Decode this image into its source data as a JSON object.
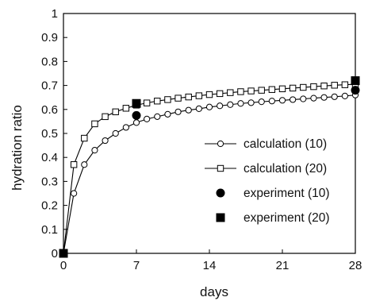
{
  "chart_data": {
    "type": "line",
    "title": "",
    "xlabel": "days",
    "ylabel": "hydration ratio",
    "xlim": [
      0,
      28
    ],
    "ylim": [
      0,
      1
    ],
    "xticks": [
      "0",
      "7",
      "14",
      "21",
      "28"
    ],
    "yticks": [
      "0",
      "0.1",
      "0.2",
      "0.3",
      "0.4",
      "0.5",
      "0.6",
      "0.7",
      "0.8",
      "0.9",
      "1"
    ],
    "grid": false,
    "legend_position": "bottom-right",
    "series": [
      {
        "name": "calculation (10)",
        "style": "line-open-circle",
        "x": [
          0,
          1,
          2,
          3,
          4,
          5,
          6,
          7,
          8,
          9,
          10,
          11,
          12,
          13,
          14,
          15,
          16,
          17,
          18,
          19,
          20,
          21,
          22,
          23,
          24,
          25,
          26,
          27,
          28
        ],
        "y": [
          0,
          0.25,
          0.37,
          0.43,
          0.47,
          0.5,
          0.525,
          0.545,
          0.56,
          0.57,
          0.58,
          0.59,
          0.597,
          0.603,
          0.61,
          0.615,
          0.62,
          0.625,
          0.628,
          0.632,
          0.635,
          0.638,
          0.641,
          0.644,
          0.647,
          0.65,
          0.653,
          0.656,
          0.66
        ]
      },
      {
        "name": "calculation (20)",
        "style": "line-open-square",
        "x": [
          0,
          1,
          2,
          3,
          4,
          5,
          6,
          7,
          8,
          9,
          10,
          11,
          12,
          13,
          14,
          15,
          16,
          17,
          18,
          19,
          20,
          21,
          22,
          23,
          24,
          25,
          26,
          27,
          28
        ],
        "y": [
          0,
          0.37,
          0.48,
          0.54,
          0.57,
          0.59,
          0.605,
          0.618,
          0.627,
          0.635,
          0.641,
          0.647,
          0.652,
          0.657,
          0.662,
          0.666,
          0.67,
          0.674,
          0.677,
          0.68,
          0.683,
          0.686,
          0.689,
          0.692,
          0.695,
          0.698,
          0.701,
          0.703,
          0.705
        ]
      },
      {
        "name": "experiment (10)",
        "style": "filled-circle",
        "x": [
          0,
          7,
          28
        ],
        "y": [
          0,
          0.575,
          0.68
        ]
      },
      {
        "name": "experiment (20)",
        "style": "filled-square",
        "x": [
          0,
          7,
          28
        ],
        "y": [
          0,
          0.625,
          0.72
        ]
      }
    ]
  }
}
